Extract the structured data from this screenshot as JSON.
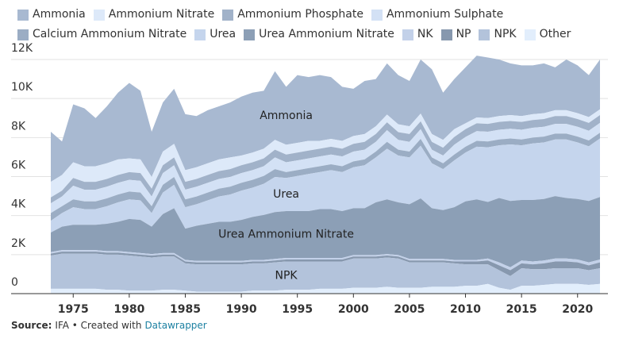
{
  "chart_data": {
    "type": "stacked-area",
    "x": [
      1973,
      1974,
      1975,
      1976,
      1977,
      1978,
      1979,
      1980,
      1981,
      1982,
      1983,
      1984,
      1985,
      1986,
      1987,
      1988,
      1989,
      1990,
      1991,
      1992,
      1993,
      1994,
      1995,
      1996,
      1997,
      1998,
      1999,
      2000,
      2001,
      2002,
      2003,
      2004,
      2005,
      2006,
      2007,
      2008,
      2009,
      2010,
      2011,
      2012,
      2013,
      2014,
      2015,
      2016,
      2017,
      2018,
      2019,
      2020,
      2021,
      2022
    ],
    "series": [
      {
        "name": "Ammonia",
        "color": "#a8b9d1",
        "values": [
          2570,
          1720,
          2970,
          2970,
          2470,
          2920,
          3420,
          3870,
          3520,
          2320,
          2520,
          2820,
          2870,
          2620,
          2720,
          2720,
          2820,
          3020,
          3070,
          2970,
          3520,
          2970,
          3470,
          3270,
          3370,
          3170,
          2770,
          2420,
          2720,
          2420,
          2620,
          2520,
          2320,
          2770,
          3320,
          2420,
          2570,
          2870,
          3170,
          3100,
          2900,
          2650,
          2600,
          2500,
          2550,
          2200,
          2600,
          2450,
          2150,
          2550
        ]
      },
      {
        "name": "Ammonium Nitrate",
        "color": "#dde9f9",
        "values": [
          800,
          800,
          800,
          800,
          800,
          800,
          800,
          700,
          700,
          600,
          700,
          700,
          600,
          600,
          600,
          600,
          600,
          500,
          500,
          500,
          500,
          500,
          500,
          500,
          400,
          400,
          400,
          400,
          400,
          400,
          400,
          400,
          400,
          400,
          400,
          400,
          400,
          300,
          300,
          300,
          300,
          300,
          300,
          300,
          300,
          300,
          300,
          300,
          300,
          300
        ]
      },
      {
        "name": "Ammonium Phosphate",
        "color": "#a1b2c9",
        "values": [
          300,
          300,
          400,
          400,
          400,
          400,
          400,
          400,
          400,
          400,
          400,
          400,
          400,
          400,
          400,
          400,
          400,
          400,
          400,
          400,
          400,
          400,
          400,
          400,
          400,
          400,
          400,
          400,
          400,
          400,
          400,
          400,
          400,
          400,
          400,
          400,
          400,
          400,
          400,
          400,
          400,
          400,
          400,
          400,
          400,
          400,
          400,
          400,
          400,
          400
        ]
      },
      {
        "name": "Ammonium Sulphate",
        "color": "#d3e1f5",
        "values": [
          500,
          500,
          700,
          600,
          600,
          600,
          600,
          600,
          600,
          500,
          600,
          600,
          500,
          500,
          500,
          500,
          500,
          500,
          500,
          500,
          600,
          500,
          500,
          500,
          500,
          500,
          500,
          500,
          500,
          500,
          600,
          500,
          500,
          500,
          400,
          400,
          500,
          500,
          500,
          500,
          500,
          500,
          500,
          500,
          500,
          500,
          500,
          500,
          500,
          500
        ]
      },
      {
        "name": "Calcium Ammonium Nitrate",
        "color": "#9badc4",
        "values": [
          400,
          350,
          400,
          400,
          400,
          400,
          400,
          400,
          400,
          350,
          400,
          400,
          400,
          400,
          400,
          400,
          400,
          400,
          400,
          400,
          400,
          300,
          300,
          300,
          300,
          300,
          300,
          300,
          300,
          300,
          350,
          300,
          300,
          350,
          300,
          300,
          300,
          300,
          300,
          300,
          300,
          300,
          300,
          300,
          300,
          300,
          300,
          300,
          300,
          300
        ]
      },
      {
        "name": "Urea",
        "color": "#c5d5ed",
        "values": [
          600,
          700,
          900,
          800,
          800,
          900,
          1000,
          1000,
          1000,
          700,
          1100,
          1200,
          1100,
          1100,
          1200,
          1300,
          1400,
          1500,
          1500,
          1600,
          1800,
          1700,
          1800,
          1900,
          1900,
          2000,
          2000,
          2100,
          2200,
          2300,
          2600,
          2400,
          2400,
          2700,
          2300,
          2100,
          2400,
          2500,
          2700,
          2800,
          2700,
          2900,
          2800,
          2900,
          2900,
          2900,
          3000,
          2900,
          2800,
          3000
        ]
      },
      {
        "name": "Urea Ammonium Nitrate",
        "color": "#8c9fb6",
        "values": [
          1000,
          1200,
          1300,
          1300,
          1300,
          1400,
          1500,
          1700,
          1700,
          1400,
          2000,
          2300,
          1600,
          1800,
          1900,
          2000,
          2000,
          2100,
          2200,
          2300,
          2400,
          2400,
          2400,
          2400,
          2500,
          2500,
          2400,
          2400,
          2400,
          2700,
          2800,
          2700,
          2800,
          3100,
          2600,
          2500,
          2700,
          3000,
          3100,
          2900,
          3300,
          3400,
          3100,
          3150,
          3150,
          3200,
          3100,
          3100,
          3150,
          3200
        ]
      },
      {
        "name": "NK",
        "color": "#c3d1e9",
        "values": [
          80,
          80,
          80,
          80,
          80,
          80,
          80,
          80,
          80,
          80,
          80,
          80,
          80,
          80,
          80,
          80,
          80,
          80,
          80,
          80,
          80,
          80,
          80,
          80,
          80,
          80,
          80,
          80,
          80,
          80,
          80,
          80,
          80,
          80,
          80,
          80,
          80,
          80,
          80,
          100,
          150,
          150,
          150,
          150,
          150,
          150,
          150,
          150,
          150,
          150
        ]
      },
      {
        "name": "NP",
        "color": "#8798ae",
        "values": [
          100,
          100,
          100,
          100,
          100,
          100,
          100,
          100,
          100,
          100,
          100,
          100,
          100,
          100,
          100,
          100,
          100,
          100,
          100,
          100,
          100,
          100,
          100,
          100,
          100,
          100,
          100,
          100,
          100,
          100,
          100,
          100,
          100,
          100,
          100,
          100,
          100,
          150,
          150,
          200,
          250,
          300,
          250,
          250,
          300,
          350,
          350,
          300,
          250,
          300
        ]
      },
      {
        "name": "NPK",
        "color": "#b3c3db",
        "values": [
          1700,
          1800,
          1800,
          1800,
          1800,
          1800,
          1800,
          1800,
          1750,
          1700,
          1700,
          1700,
          1400,
          1400,
          1400,
          1400,
          1400,
          1400,
          1400,
          1400,
          1450,
          1450,
          1450,
          1450,
          1400,
          1400,
          1400,
          1500,
          1500,
          1500,
          1500,
          1500,
          1300,
          1300,
          1250,
          1250,
          1200,
          1100,
          1100,
          1000,
          900,
          700,
          900,
          850,
          800,
          800,
          800,
          800,
          750,
          800
        ]
      },
      {
        "name": "Other",
        "color": "#e2eefc",
        "values": [
          250,
          250,
          250,
          250,
          250,
          200,
          200,
          150,
          150,
          150,
          200,
          200,
          150,
          100,
          100,
          100,
          100,
          100,
          150,
          150,
          150,
          200,
          200,
          200,
          250,
          250,
          250,
          300,
          300,
          300,
          350,
          300,
          300,
          300,
          350,
          350,
          350,
          400,
          400,
          500,
          300,
          200,
          400,
          400,
          450,
          500,
          500,
          500,
          450,
          500
        ]
      }
    ],
    "xlim": [
      1973,
      2022
    ],
    "xticks": [
      1975,
      1980,
      1985,
      1990,
      1995,
      2000,
      2005,
      2010,
      2015,
      2020
    ],
    "ylim": [
      0,
      12000
    ],
    "yticks": [
      0,
      {
        "value": 2000,
        "label": "2K"
      },
      {
        "value": 4000,
        "label": "4K"
      },
      {
        "value": 6000,
        "label": "6K"
      },
      {
        "value": 8000,
        "label": "8K"
      },
      {
        "value": 10000,
        "label": "10K"
      },
      {
        "value": 12000,
        "label": "12K"
      }
    ],
    "grid": true,
    "area_labels": [
      "Ammonia",
      "Urea",
      "Urea Ammonium Nitrate",
      "NPK"
    ],
    "source_label": "Source:",
    "source": "IFA • Created with",
    "credit": "Datawrapper"
  }
}
